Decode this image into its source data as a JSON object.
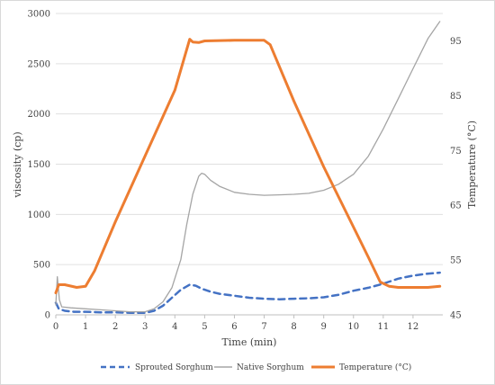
{
  "chart_data": {
    "type": "line",
    "xlabel": "Time (min)",
    "ylabel": "viscosity (cp)",
    "y2label": "Temperature (°C)",
    "xlim": [
      0,
      13
    ],
    "ylim": [
      0,
      3000
    ],
    "y2lim": [
      45,
      100
    ],
    "x_ticks": [
      0,
      1,
      2,
      3,
      4,
      5,
      6,
      7,
      8,
      9,
      10,
      11,
      12
    ],
    "y_ticks": [
      0,
      500,
      1000,
      1500,
      2000,
      2500,
      3000
    ],
    "y2_ticks": [
      45,
      55,
      65,
      75,
      85,
      95
    ],
    "grid": "horizontal",
    "legend_position": "bottom",
    "series": [
      {
        "name": "Sprouted Sorghum",
        "axis": "left",
        "color": "#4472c4",
        "style": "dashed",
        "x": [
          0,
          0.05,
          0.1,
          0.3,
          0.6,
          1,
          1.5,
          2,
          2.5,
          3,
          3.3,
          3.6,
          3.9,
          4.2,
          4.5,
          4.7,
          4.9,
          5.2,
          5.5,
          6,
          6.5,
          7,
          7.5,
          8,
          8.5,
          9,
          9.5,
          10,
          10.5,
          11,
          11.5,
          12,
          12.5,
          12.9
        ],
        "values": [
          120,
          90,
          60,
          40,
          30,
          30,
          25,
          25,
          20,
          20,
          40,
          90,
          170,
          250,
          300,
          290,
          260,
          230,
          210,
          190,
          170,
          160,
          155,
          160,
          165,
          175,
          200,
          240,
          270,
          310,
          360,
          390,
          410,
          420
        ]
      },
      {
        "name": "Native Sorghum",
        "axis": "left",
        "color": "#a5a5a5",
        "style": "solid",
        "x": [
          0,
          0.05,
          0.12,
          0.2,
          0.5,
          1,
          1.5,
          2,
          2.5,
          3,
          3.3,
          3.6,
          3.9,
          4.2,
          4.4,
          4.6,
          4.8,
          4.9,
          5.0,
          5.2,
          5.5,
          6,
          6.5,
          7,
          7.5,
          8,
          8.5,
          9,
          9.5,
          10,
          10.5,
          11,
          11.5,
          12,
          12.5,
          12.9
        ],
        "values": [
          100,
          380,
          150,
          80,
          70,
          60,
          50,
          40,
          30,
          30,
          60,
          130,
          270,
          550,
          900,
          1200,
          1380,
          1410,
          1400,
          1340,
          1280,
          1220,
          1200,
          1190,
          1195,
          1200,
          1210,
          1240,
          1300,
          1400,
          1580,
          1850,
          2150,
          2450,
          2750,
          2920
        ]
      },
      {
        "name": "Temperature (°C)",
        "axis": "right",
        "color": "#ed7d31",
        "style": "solid",
        "x": [
          0,
          0.1,
          0.3,
          0.7,
          1.0,
          1.3,
          2.0,
          3.0,
          4.0,
          4.5,
          4.6,
          4.8,
          5.0,
          6.0,
          7.0,
          7.2,
          8.0,
          9.0,
          10.0,
          10.5,
          10.9,
          11.2,
          11.5,
          12.0,
          12.5,
          12.9
        ],
        "values": [
          49,
          50.5,
          50.5,
          50,
          50.2,
          53,
          62,
          74,
          86,
          95.3,
          94.8,
          94.7,
          95,
          95.1,
          95.1,
          94.3,
          84,
          72,
          61,
          55.5,
          51,
          50.2,
          50,
          50,
          50,
          50.2
        ]
      }
    ]
  }
}
